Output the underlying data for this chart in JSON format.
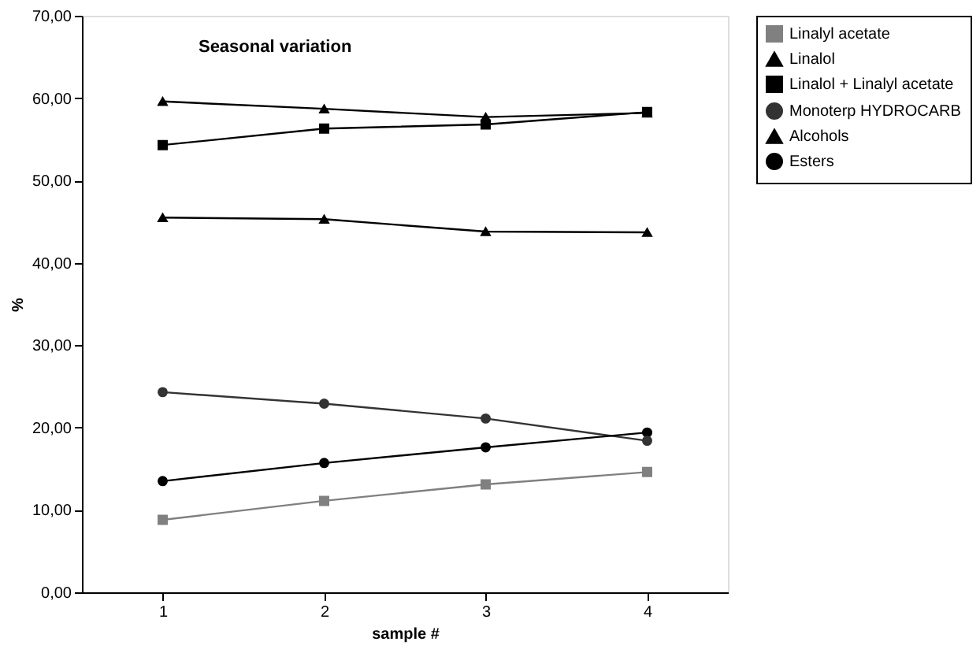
{
  "chart_data": {
    "type": "line",
    "title": "Seasonal variation",
    "xlabel": "sample #",
    "ylabel": "%",
    "categories": [
      "1",
      "2",
      "3",
      "4"
    ],
    "ylim": [
      0,
      70
    ],
    "yticks": [
      {
        "value": 0,
        "label": "0,00"
      },
      {
        "value": 10,
        "label": "10,00"
      },
      {
        "value": 20,
        "label": "20,00"
      },
      {
        "value": 30,
        "label": "30,00"
      },
      {
        "value": 40,
        "label": "40,00"
      },
      {
        "value": 50,
        "label": "50,00"
      },
      {
        "value": 60,
        "label": "60,00"
      },
      {
        "value": 70,
        "label": "70,00"
      }
    ],
    "grid": false,
    "legend": "right",
    "line_style": "solid",
    "series": [
      {
        "name": "Linalyl acetate",
        "color": "#808080",
        "marker": "square",
        "values": [
          8.8,
          11.1,
          13.1,
          14.6
        ]
      },
      {
        "name": "Linalol",
        "color": "#000000",
        "marker": "triangle",
        "values": [
          45.5,
          45.3,
          43.8,
          43.7
        ]
      },
      {
        "name": "Linalol + Linalyl acetate",
        "color": "#000000",
        "marker": "square",
        "values": [
          54.3,
          56.3,
          56.8,
          58.3
        ]
      },
      {
        "name": "Monoterp HYDROCARB",
        "color": "#333333",
        "marker": "circle",
        "values": [
          24.3,
          22.9,
          21.1,
          18.4
        ]
      },
      {
        "name": "Alcohols",
        "color": "#000000",
        "marker": "triangle",
        "values": [
          59.6,
          58.7,
          57.7,
          58.2
        ]
      },
      {
        "name": "Esters",
        "color": "#000000",
        "marker": "circle",
        "values": [
          13.5,
          15.7,
          17.6,
          19.4
        ]
      }
    ]
  }
}
